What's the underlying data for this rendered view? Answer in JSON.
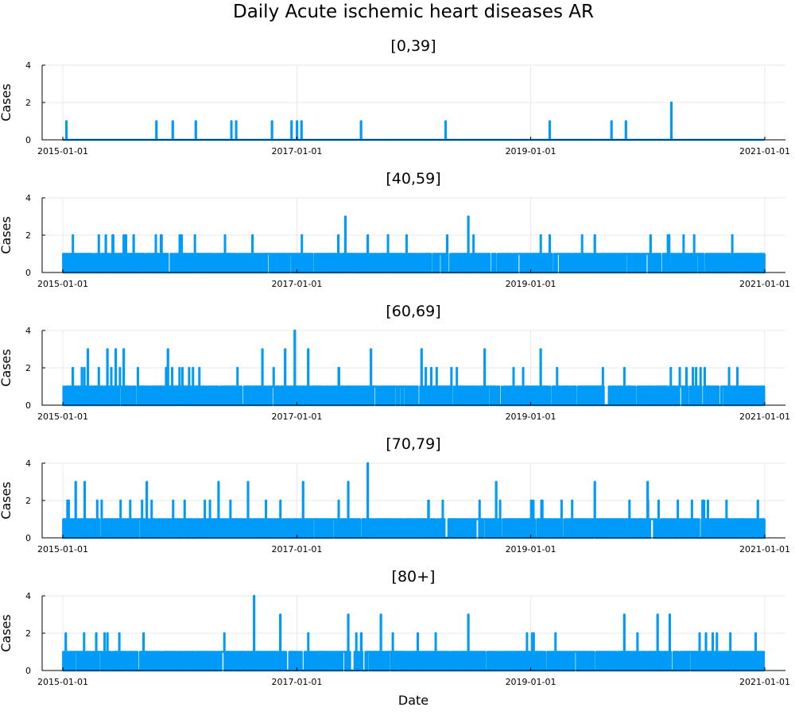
{
  "title": "Daily Acute ischemic heart diseases AR",
  "xlabel": "Date",
  "ylabel": "Cases",
  "x_ticks": [
    "2015-01-01",
    "2017-01-01",
    "2019-01-01",
    "2021-01-01"
  ],
  "y_ticks": [
    0,
    2,
    4
  ],
  "colors": {
    "series": "#009af9",
    "grid": "#e8e8e8",
    "axis": "#000000"
  },
  "chart_data": [
    {
      "type": "line",
      "title": "[0,39]",
      "xlabel": "",
      "ylabel": "Cases",
      "xlim": [
        "2015-01-01",
        "2021-01-01"
      ],
      "ylim": [
        0,
        4
      ],
      "grid": true,
      "series": [
        {
          "x_range": [
            "2015-01-01",
            "2020-12-31"
          ],
          "baseline": 0,
          "spikes": [
            {
              "date": "2015-01-12",
              "value": 1
            },
            {
              "date": "2015-10-20",
              "value": 1
            },
            {
              "date": "2015-12-10",
              "value": 1
            },
            {
              "date": "2016-02-20",
              "value": 1
            },
            {
              "date": "2016-06-10",
              "value": 1
            },
            {
              "date": "2016-06-25",
              "value": 1
            },
            {
              "date": "2016-10-15",
              "value": 1
            },
            {
              "date": "2016-12-15",
              "value": 1
            },
            {
              "date": "2017-01-01",
              "value": 1
            },
            {
              "date": "2017-01-15",
              "value": 1
            },
            {
              "date": "2017-07-20",
              "value": 1
            },
            {
              "date": "2018-04-10",
              "value": 1
            },
            {
              "date": "2019-03-01",
              "value": 1
            },
            {
              "date": "2019-09-10",
              "value": 1
            },
            {
              "date": "2019-10-25",
              "value": 1
            },
            {
              "date": "2020-03-15",
              "value": 2
            }
          ]
        }
      ]
    },
    {
      "type": "line",
      "title": "[40,59]",
      "xlabel": "",
      "ylabel": "Cases",
      "xlim": [
        "2015-01-01",
        "2021-01-01"
      ],
      "ylim": [
        0,
        4
      ],
      "grid": true,
      "series": [
        {
          "x_range": [
            "2015-01-01",
            "2020-12-31"
          ],
          "baseline": 1,
          "spikes": [
            {
              "date": "2015-05-15",
              "value": 2
            },
            {
              "date": "2015-07-10",
              "value": 2
            },
            {
              "date": "2015-08-10",
              "value": 2
            },
            {
              "date": "2015-11-05",
              "value": 2
            },
            {
              "date": "2016-01-01",
              "value": 2
            },
            {
              "date": "2016-08-15",
              "value": 2
            },
            {
              "date": "2017-05-10",
              "value": 2
            },
            {
              "date": "2017-06-01",
              "value": 3
            },
            {
              "date": "2017-08-10",
              "value": 2
            },
            {
              "date": "2018-04-15",
              "value": 2
            },
            {
              "date": "2018-06-20",
              "value": 3
            },
            {
              "date": "2019-03-01",
              "value": 2
            },
            {
              "date": "2019-07-20",
              "value": 2
            },
            {
              "date": "2020-01-10",
              "value": 2
            }
          ]
        }
      ]
    },
    {
      "type": "line",
      "title": "[60,69]",
      "xlabel": "",
      "ylabel": "Cases",
      "xlim": [
        "2015-01-01",
        "2021-01-01"
      ],
      "ylim": [
        0,
        4
      ],
      "grid": true,
      "series": [
        {
          "x_range": [
            "2015-01-01",
            "2020-12-31"
          ],
          "baseline": 1,
          "spikes": [
            {
              "date": "2015-02-01",
              "value": 2
            },
            {
              "date": "2015-03-20",
              "value": 3
            },
            {
              "date": "2015-05-20",
              "value": 3
            },
            {
              "date": "2015-06-15",
              "value": 3
            },
            {
              "date": "2015-07-10",
              "value": 3
            },
            {
              "date": "2015-11-25",
              "value": 3
            },
            {
              "date": "2016-09-15",
              "value": 3
            },
            {
              "date": "2016-11-25",
              "value": 3
            },
            {
              "date": "2016-12-25",
              "value": 4
            },
            {
              "date": "2017-02-05",
              "value": 3
            },
            {
              "date": "2017-08-20",
              "value": 3
            },
            {
              "date": "2018-01-25",
              "value": 3
            },
            {
              "date": "2018-08-10",
              "value": 3
            },
            {
              "date": "2019-02-01",
              "value": 3
            },
            {
              "date": "2020-05-01",
              "value": 2
            }
          ]
        }
      ]
    },
    {
      "type": "line",
      "title": "[70,79]",
      "xlabel": "",
      "ylabel": "Cases",
      "xlim": [
        "2015-01-01",
        "2021-01-01"
      ],
      "ylim": [
        0,
        4
      ],
      "grid": true,
      "series": [
        {
          "x_range": [
            "2015-01-01",
            "2020-12-31"
          ],
          "baseline": 1,
          "spikes": [
            {
              "date": "2015-02-10",
              "value": 3
            },
            {
              "date": "2015-03-10",
              "value": 3
            },
            {
              "date": "2015-09-20",
              "value": 3
            },
            {
              "date": "2016-05-01",
              "value": 3
            },
            {
              "date": "2016-08-01",
              "value": 3
            },
            {
              "date": "2017-01-20",
              "value": 3
            },
            {
              "date": "2017-06-10",
              "value": 3
            },
            {
              "date": "2017-08-10",
              "value": 4
            },
            {
              "date": "2018-09-15",
              "value": 3
            },
            {
              "date": "2019-07-20",
              "value": 3
            },
            {
              "date": "2020-01-01",
              "value": 3
            },
            {
              "date": "2020-12-10",
              "value": 2
            }
          ]
        }
      ]
    },
    {
      "type": "line",
      "title": "[80+]",
      "xlabel": "Date",
      "ylabel": "Cases",
      "xlim": [
        "2015-01-01",
        "2021-01-01"
      ],
      "ylim": [
        0,
        4
      ],
      "grid": true,
      "series": [
        {
          "x_range": [
            "2015-01-01",
            "2020-12-31"
          ],
          "baseline": 1,
          "spikes": [
            {
              "date": "2015-01-10",
              "value": 2
            },
            {
              "date": "2015-04-15",
              "value": 2
            },
            {
              "date": "2015-09-10",
              "value": 2
            },
            {
              "date": "2016-08-20",
              "value": 4
            },
            {
              "date": "2016-11-10",
              "value": 3
            },
            {
              "date": "2017-06-10",
              "value": 3
            },
            {
              "date": "2017-09-20",
              "value": 3
            },
            {
              "date": "2018-06-20",
              "value": 3
            },
            {
              "date": "2019-10-20",
              "value": 3
            },
            {
              "date": "2020-02-01",
              "value": 3
            },
            {
              "date": "2020-03-10",
              "value": 3
            },
            {
              "date": "2020-07-01",
              "value": 2
            }
          ]
        }
      ]
    }
  ]
}
